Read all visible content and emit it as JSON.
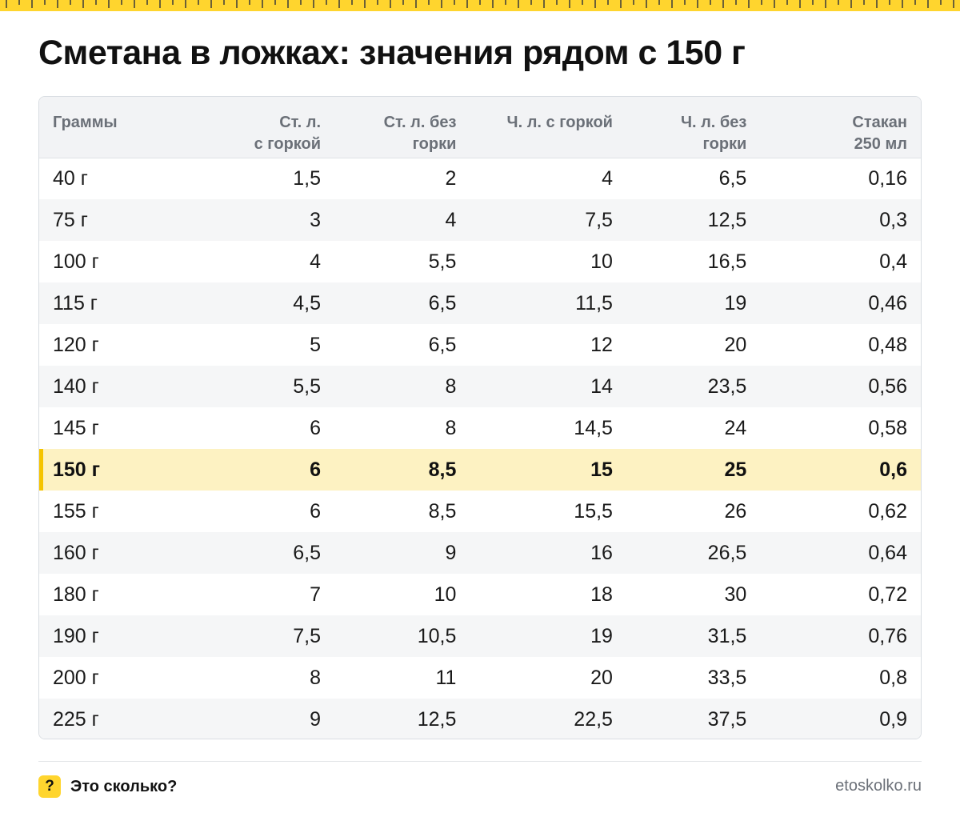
{
  "title": "Сметана в ложках: значения рядом с 150 г",
  "table": {
    "headers": [
      [
        "Граммы"
      ],
      [
        "Ст. л.",
        "с горкой"
      ],
      [
        "Ст. л. без",
        "горки"
      ],
      [
        "Ч. л. с горкой"
      ],
      [
        "Ч. л. без",
        "горки"
      ],
      [
        "Стакан",
        "250 мл"
      ]
    ],
    "highlight_row_index": 7,
    "rows": [
      [
        "40 г",
        "1,5",
        "2",
        "4",
        "6,5",
        "0,16"
      ],
      [
        "75 г",
        "3",
        "4",
        "7,5",
        "12,5",
        "0,3"
      ],
      [
        "100 г",
        "4",
        "5,5",
        "10",
        "16,5",
        "0,4"
      ],
      [
        "115 г",
        "4,5",
        "6,5",
        "11,5",
        "19",
        "0,46"
      ],
      [
        "120 г",
        "5",
        "6,5",
        "12",
        "20",
        "0,48"
      ],
      [
        "140 г",
        "5,5",
        "8",
        "14",
        "23,5",
        "0,56"
      ],
      [
        "145 г",
        "6",
        "8",
        "14,5",
        "24",
        "0,58"
      ],
      [
        "150 г",
        "6",
        "8,5",
        "15",
        "25",
        "0,6"
      ],
      [
        "155 г",
        "6",
        "8,5",
        "15,5",
        "26",
        "0,62"
      ],
      [
        "160 г",
        "6,5",
        "9",
        "16",
        "26,5",
        "0,64"
      ],
      [
        "180 г",
        "7",
        "10",
        "18",
        "30",
        "0,72"
      ],
      [
        "190 г",
        "7,5",
        "10,5",
        "19",
        "31,5",
        "0,76"
      ],
      [
        "200 г",
        "8",
        "11",
        "20",
        "33,5",
        "0,8"
      ],
      [
        "225 г",
        "9",
        "12,5",
        "22,5",
        "37,5",
        "0,9"
      ]
    ]
  },
  "footer": {
    "brand_mark": "?",
    "brand_name": "Это сколько?",
    "site": "etoskolko.ru"
  },
  "colors": {
    "accent": "#ffd52e",
    "highlight_row": "#fdf2c2",
    "highlight_bar": "#f5c400"
  }
}
